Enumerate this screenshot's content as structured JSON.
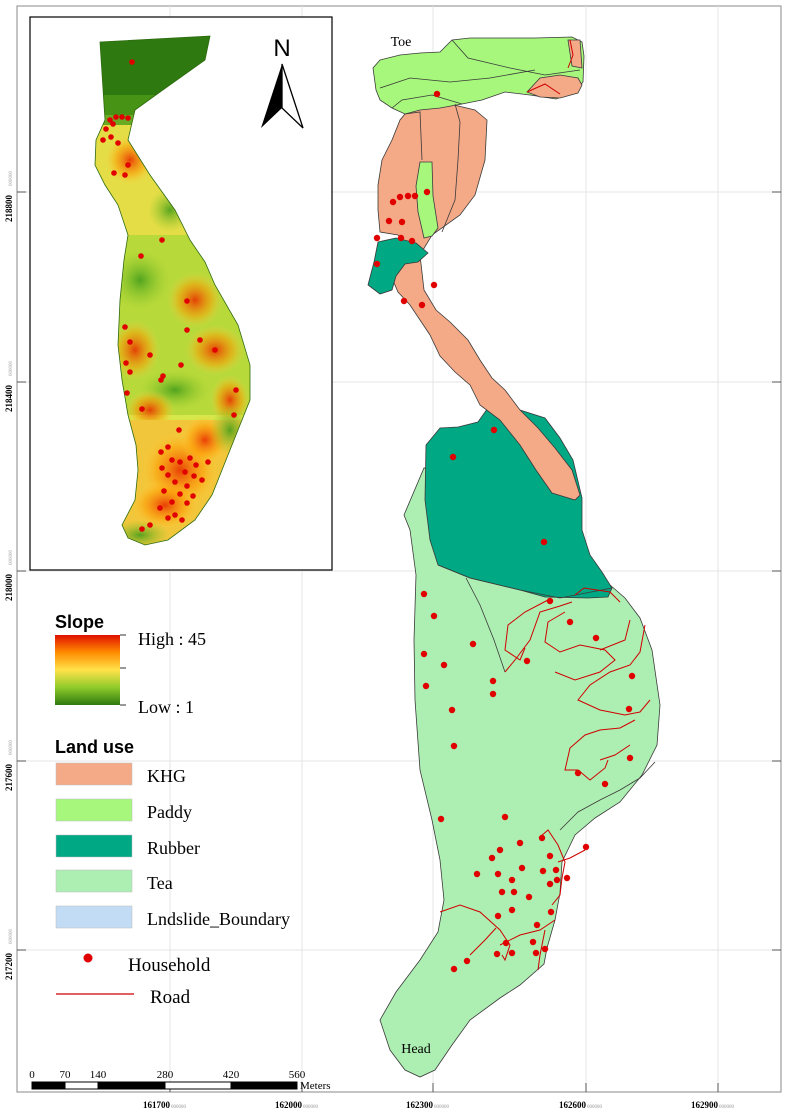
{
  "map": {
    "place_labels": {
      "toe": "Toe",
      "head": "Head"
    },
    "coordinate_grid": {
      "x_labels": [
        {
          "main": "161700",
          "sub": "000000"
        },
        {
          "main": "162000",
          "sub": "000000"
        },
        {
          "main": "162300",
          "sub": "000000"
        },
        {
          "main": "162600",
          "sub": "000000"
        },
        {
          "main": "162900",
          "sub": "000000"
        }
      ],
      "y_labels": [
        {
          "main": "218800",
          "sub": "000000"
        },
        {
          "main": "218400",
          "sub": "000000"
        },
        {
          "main": "218000",
          "sub": "000000"
        },
        {
          "main": "217600",
          "sub": "000000"
        },
        {
          "main": "217200",
          "sub": "000000"
        }
      ]
    },
    "north_arrow": {
      "label": "N"
    },
    "scale_bar": {
      "ticks": [
        "0",
        "70",
        "140",
        "280",
        "420",
        "560"
      ],
      "unit": "Meters"
    }
  },
  "legend": {
    "slope": {
      "title": "Slope",
      "high": "High : 45",
      "low": "Low : 1"
    },
    "land_use": {
      "title": "Land use",
      "items": [
        {
          "label": "KHG",
          "color": "#f4a987"
        },
        {
          "label": "Paddy",
          "color": "#a6f77c"
        },
        {
          "label": "Rubber",
          "color": "#00a884"
        },
        {
          "label": "Tea",
          "color": "#adefb2"
        },
        {
          "label": "Lndslide_Boundary",
          "color": "#c3dcf5"
        }
      ]
    },
    "household": {
      "label": "Household",
      "color": "#e00000"
    },
    "road": {
      "label": "Road",
      "color": "#d00000"
    }
  }
}
